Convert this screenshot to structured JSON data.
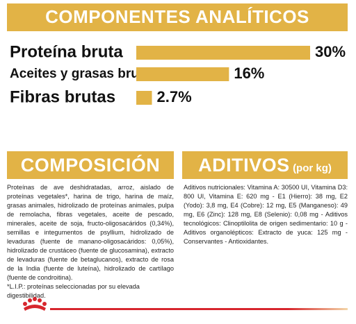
{
  "chart_data": {
    "type": "bar",
    "title": "COMPONENTES ANALÍTICOS",
    "categories": [
      "Proteína bruta",
      "Aceites y grasas brutos",
      "Fibras brutas"
    ],
    "values": [
      30,
      16,
      2.7
    ],
    "value_labels": [
      "30%",
      "16%",
      "2.7%"
    ],
    "color": "#e2b346"
  },
  "composition": {
    "title": "COMPOSICIÓN",
    "text": "Proteínas de ave deshidratadas, arroz, aislado de proteínas vegetales*, harina de trigo, harina de maíz, grasas animales, hidrolizado de proteínas animales, pulpa de remolacha, fibras vegetales, aceite de pescado, minerales, aceite de soja, fructo-oligosacáridos (0,34%), semillas e integumentos de psyllium, hidrolizado de levaduras (fuente de manano-oligosacáridos: 0,05%), hidrolizado de crustáceo (fuente de glucosamina), extracto de levaduras (fuente de betaglucanos), extracto de rosa de la India (fuente de luteína), hidrolizado de cartílago (fuente de condroitina).",
    "note": "*L.I.P.: proteínas seleccionadas por su elevada digestibilidad."
  },
  "additives": {
    "title": "ADITIVOS",
    "subtitle": "(por kg)",
    "text": "Aditivos nutricionales: Vitamina A: 30500 UI, Vitamina D3: 800 UI, Vitamina E: 620 mg - E1 (Hierro): 38 mg, E2 (Yodo): 3,8 mg, E4 (Cobre): 12 mg, E5 (Manganeso): 49 mg, E6 (Zinc): 128 mg, E8 (Selenio): 0,08 mg - Aditivos tecnológicos: Clinoptilolita de origen sedimentario: 10 g - Aditivos organolépticos: Extracto de yuca: 125 mg - Conservantes - Antioxidantes."
  }
}
